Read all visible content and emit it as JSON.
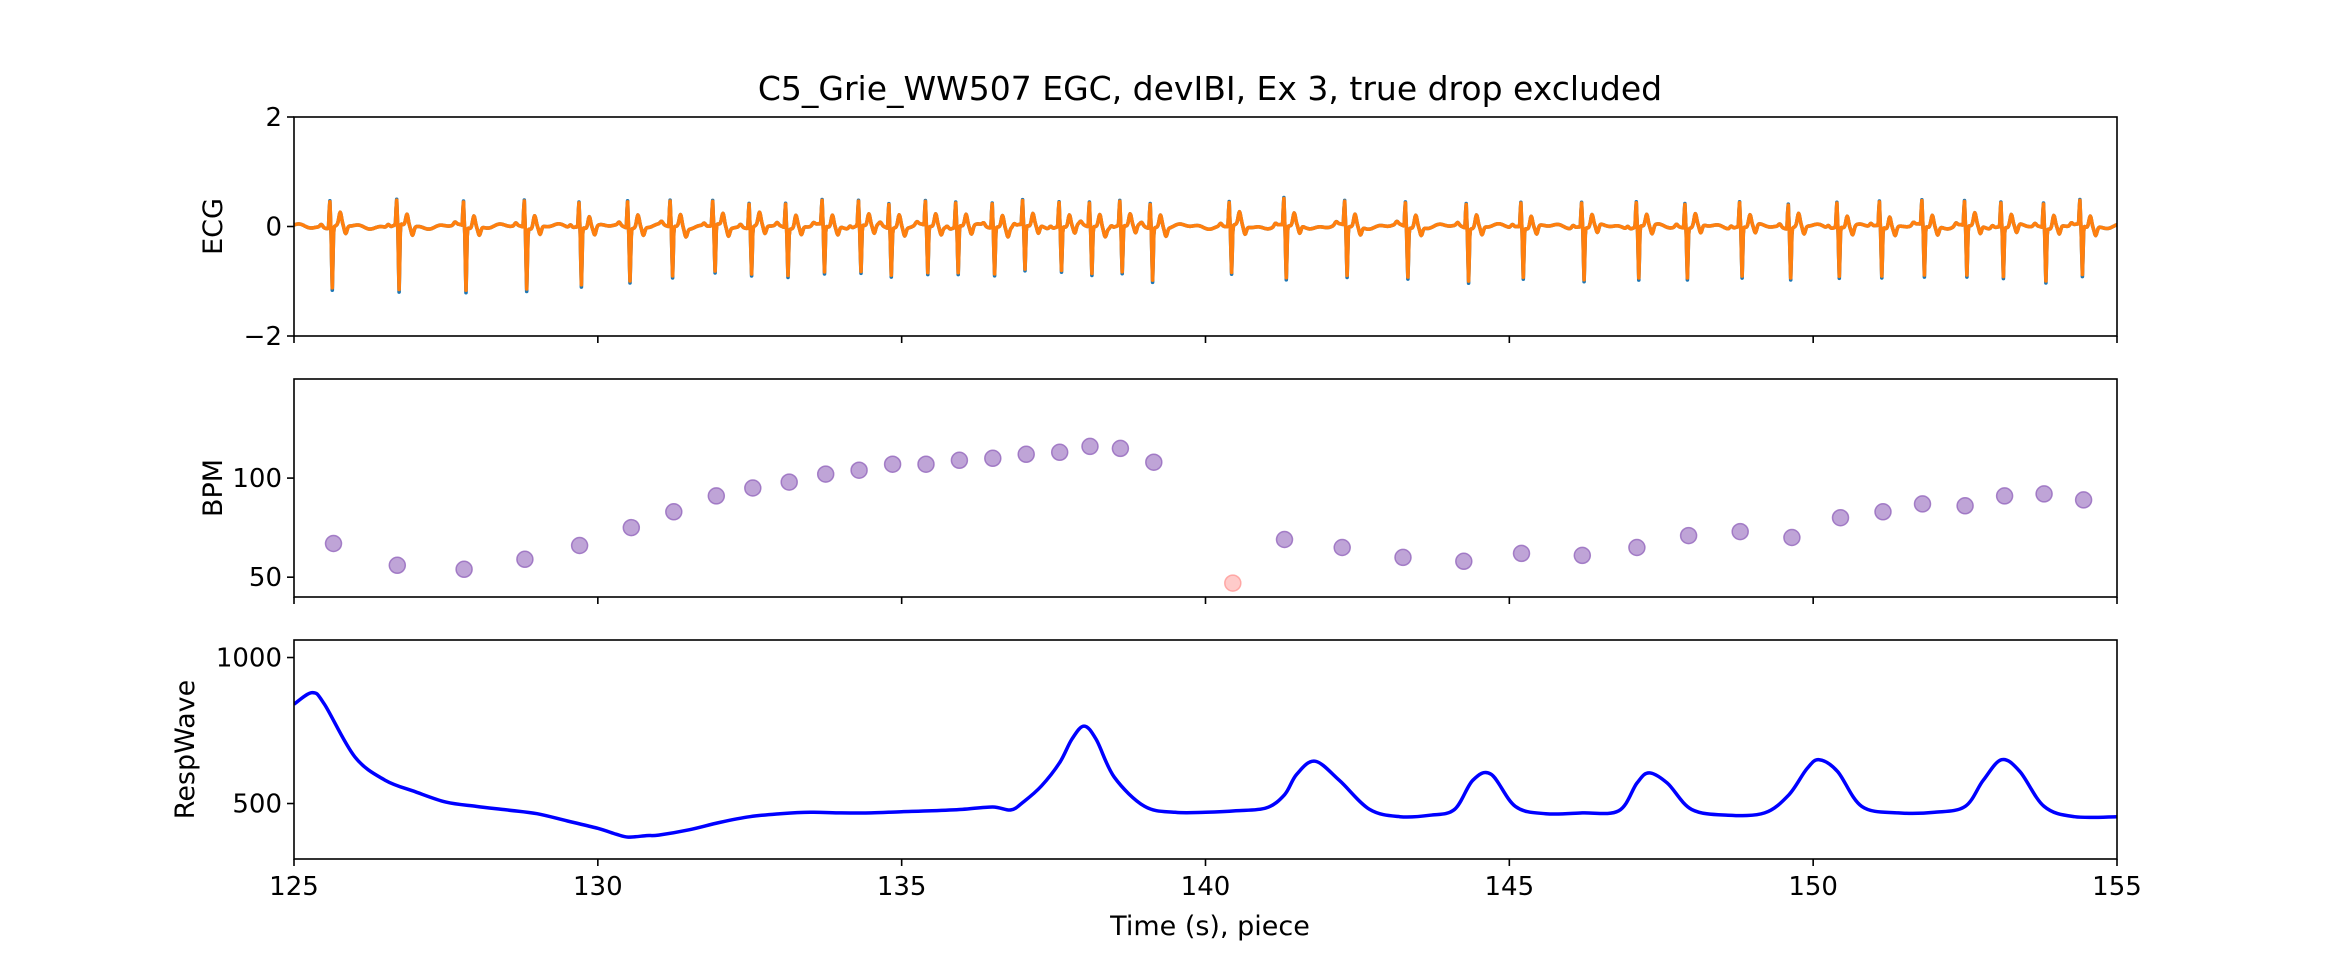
{
  "title": "C5_Grie_WW507 EGC, devIBI, Ex 3, true drop excluded",
  "colors": {
    "ecg_underlay": "#1f77b4",
    "ecg": "#ff7f0e",
    "bpm_points": "#9467bd",
    "bpm_excluded": "#ff9896",
    "resp": "#0000ff"
  },
  "chart_data": [
    {
      "type": "line",
      "panel": "ecg",
      "ylabel": "ECG",
      "xlabel": "",
      "xlim": [
        125,
        155
      ],
      "ylim": [
        -2,
        2
      ],
      "yticks": [
        -2,
        0,
        2
      ],
      "ytick_labels": [
        "−2",
        "0",
        "2"
      ],
      "grid": false,
      "beats": {
        "times": [
          125.6,
          126.7,
          127.8,
          128.8,
          129.7,
          130.5,
          131.2,
          131.9,
          132.5,
          133.1,
          133.7,
          134.3,
          134.8,
          135.4,
          135.9,
          136.5,
          137.0,
          137.6,
          138.1,
          138.6,
          139.1,
          140.4,
          141.3,
          142.3,
          143.3,
          144.3,
          145.2,
          146.2,
          147.1,
          147.9,
          148.8,
          149.6,
          150.4,
          151.1,
          151.8,
          152.5,
          153.1,
          153.8,
          154.4
        ],
        "r_peak": [
          0.5,
          0.45,
          0.45,
          0.5,
          0.45,
          0.5,
          0.48,
          0.45,
          0.45,
          0.45,
          0.45,
          0.45,
          0.45,
          0.45,
          0.45,
          0.45,
          0.45,
          0.45,
          0.45,
          0.45,
          0.45,
          0.45,
          0.5,
          0.45,
          0.45,
          0.45,
          0.45,
          0.45,
          0.45,
          0.45,
          0.45,
          0.45,
          0.45,
          0.45,
          0.45,
          0.45,
          0.45,
          0.45,
          0.45
        ],
        "s_trough": [
          -1.1,
          -1.2,
          -1.15,
          -1.1,
          -1.05,
          -0.95,
          -0.9,
          -0.85,
          -0.85,
          -0.85,
          -0.85,
          -0.85,
          -0.85,
          -0.85,
          -0.85,
          -0.85,
          -0.8,
          -0.8,
          -0.85,
          -0.85,
          -0.95,
          -0.85,
          -0.95,
          -0.9,
          -0.9,
          -0.95,
          -0.9,
          -0.95,
          -0.95,
          -0.9,
          -0.9,
          -0.9,
          -0.9,
          -0.9,
          -0.9,
          -0.9,
          -0.9,
          -0.95,
          -0.9
        ]
      },
      "series": [
        {
          "color_key": "ecg_underlay"
        },
        {
          "color_key": "ecg"
        }
      ]
    },
    {
      "type": "scatter",
      "panel": "bpm",
      "ylabel": "BPM",
      "xlabel": "",
      "xlim": [
        125,
        155
      ],
      "ylim": [
        40,
        150
      ],
      "yticks": [
        50,
        100
      ],
      "ytick_labels": [
        "50",
        "100"
      ],
      "grid": false,
      "series": [
        {
          "color_key": "bpm_points",
          "x": [
            125.65,
            126.7,
            127.8,
            128.8,
            129.7,
            130.55,
            131.25,
            131.95,
            132.55,
            133.15,
            133.75,
            134.3,
            134.85,
            135.4,
            135.95,
            136.5,
            137.05,
            137.6,
            138.1,
            138.6,
            139.15,
            141.3,
            142.25,
            143.25,
            144.25,
            145.2,
            146.2,
            147.1,
            147.95,
            148.8,
            149.65,
            150.45,
            151.15,
            151.8,
            152.5,
            153.15,
            153.8,
            154.45
          ],
          "y": [
            67,
            56,
            54,
            59,
            66,
            75,
            83,
            91,
            95,
            98,
            102,
            104,
            107,
            107,
            109,
            110,
            112,
            113,
            116,
            115,
            108,
            69,
            65,
            60,
            58,
            62,
            61,
            65,
            71,
            73,
            70,
            80,
            83,
            87,
            86,
            91,
            92,
            89
          ]
        },
        {
          "color_key": "bpm_excluded",
          "x": [
            140.45
          ],
          "y": [
            47
          ]
        }
      ]
    },
    {
      "type": "line",
      "panel": "resp",
      "ylabel": "RespWave",
      "xlabel": "Time (s), piece",
      "xlim": [
        125,
        155
      ],
      "ylim": [
        310,
        1060
      ],
      "yticks": [
        500,
        1000
      ],
      "ytick_labels": [
        "500",
        "1000"
      ],
      "xticks": [
        125,
        130,
        135,
        140,
        145,
        150,
        155
      ],
      "xtick_labels": [
        "125",
        "130",
        "135",
        "140",
        "145",
        "150",
        "155"
      ],
      "grid": false,
      "series": [
        {
          "color_key": "resp",
          "x": [
            125,
            125.3,
            125.5,
            126,
            126.5,
            127,
            127.5,
            128,
            128.5,
            129,
            129.5,
            130,
            130.3,
            130.5,
            130.8,
            131,
            131.5,
            132,
            132.5,
            133,
            133.5,
            134,
            134.5,
            135,
            135.5,
            136,
            136.5,
            136.8,
            137,
            137.3,
            137.6,
            137.8,
            138,
            138.2,
            138.5,
            139,
            139.5,
            140,
            140.5,
            141,
            141.3,
            141.5,
            141.8,
            142.2,
            142.7,
            143.2,
            143.7,
            144.1,
            144.4,
            144.7,
            145.1,
            145.6,
            146.2,
            146.8,
            147.1,
            147.3,
            147.6,
            148,
            148.6,
            149.2,
            149.6,
            149.9,
            150.1,
            150.4,
            150.8,
            151.4,
            152,
            152.5,
            152.8,
            153.1,
            153.4,
            153.8,
            154.3,
            155
          ],
          "y": [
            840,
            880,
            840,
            660,
            580,
            540,
            505,
            490,
            478,
            465,
            440,
            415,
            395,
            385,
            390,
            392,
            410,
            435,
            455,
            465,
            470,
            468,
            468,
            472,
            475,
            480,
            488,
            478,
            505,
            560,
            640,
            720,
            765,
            720,
            590,
            490,
            470,
            470,
            475,
            485,
            530,
            600,
            645,
            580,
            480,
            455,
            460,
            480,
            580,
            600,
            490,
            465,
            468,
            475,
            570,
            605,
            570,
            480,
            460,
            468,
            530,
            620,
            650,
            610,
            490,
            468,
            470,
            490,
            580,
            650,
            610,
            490,
            455,
            455
          ]
        }
      ]
    }
  ]
}
